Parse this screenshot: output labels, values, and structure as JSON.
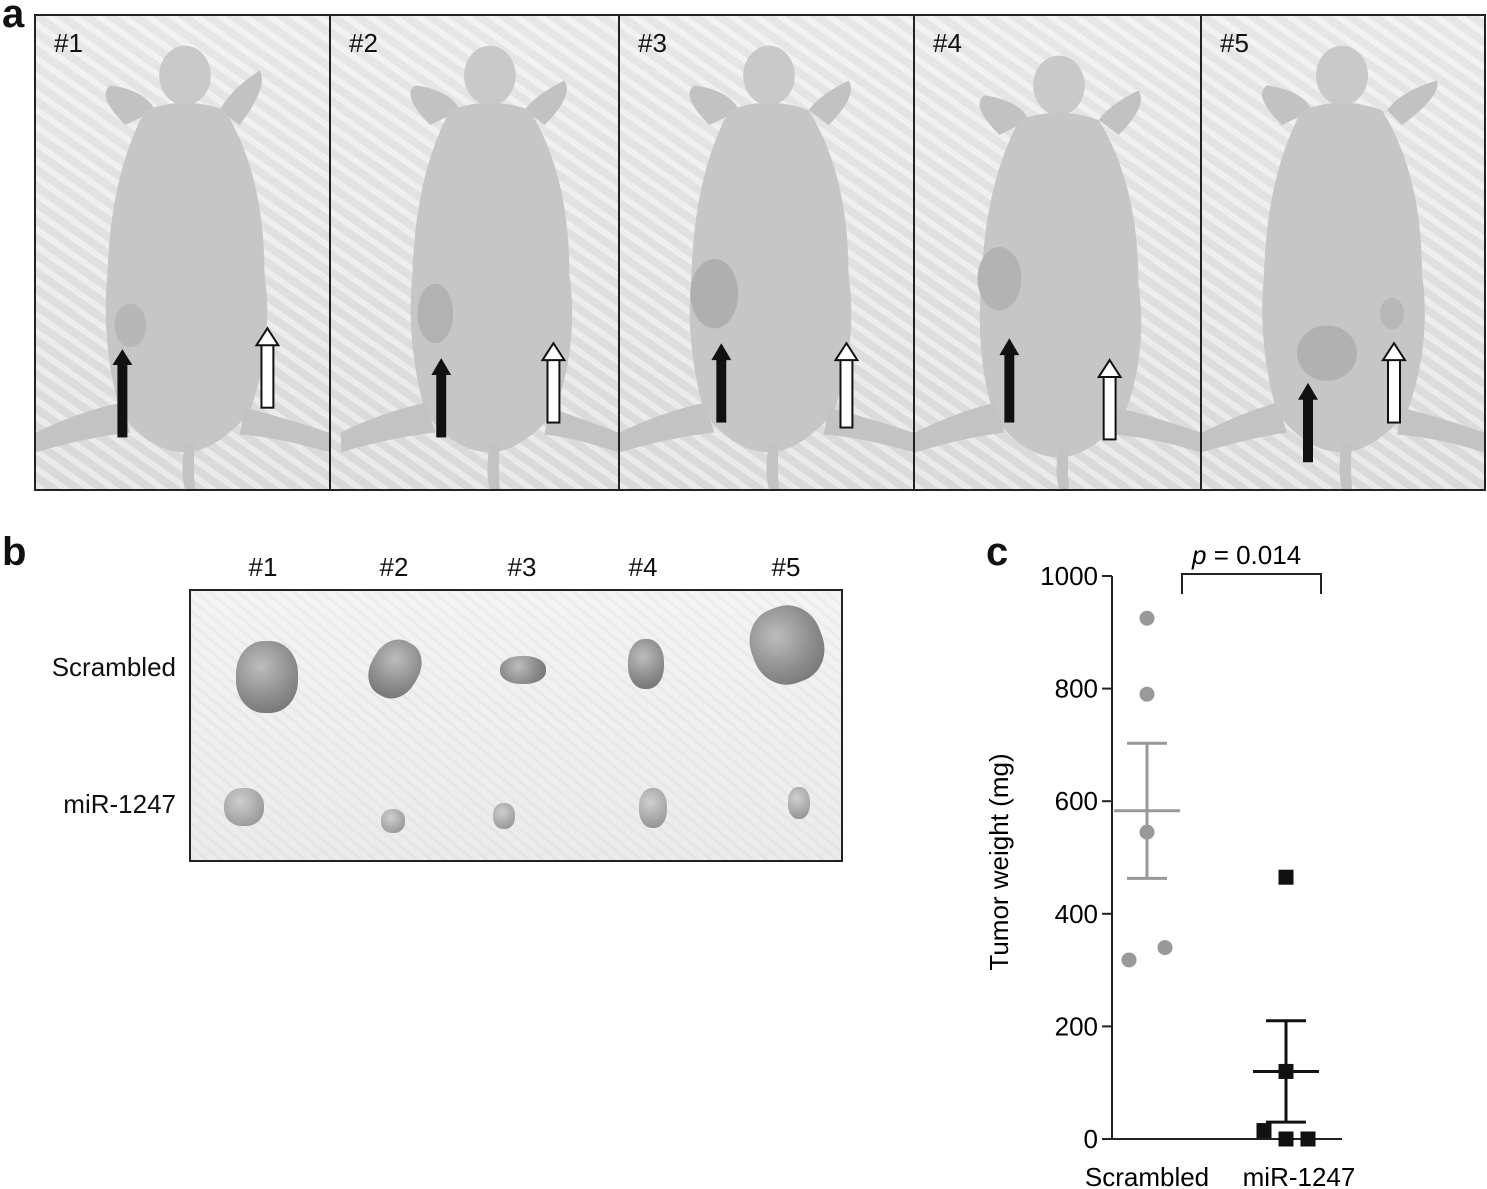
{
  "panels": {
    "a": "a",
    "b": "b",
    "c": "c"
  },
  "panel_a": {
    "mice": [
      {
        "label": "#1"
      },
      {
        "label": "#2"
      },
      {
        "label": "#3"
      },
      {
        "label": "#4"
      },
      {
        "label": "#5"
      }
    ]
  },
  "panel_b": {
    "columns": [
      "#1",
      "#2",
      "#3",
      "#4",
      "#5"
    ],
    "rows": [
      "Scrambled",
      "miR-1247"
    ]
  },
  "chart_data": {
    "type": "scatter",
    "title": "",
    "xlabel": "",
    "ylabel": "Tumor weight (mg)",
    "ylim": [
      0,
      1000
    ],
    "yticks": [
      0,
      200,
      400,
      600,
      800,
      1000
    ],
    "categories": [
      "Scrambled",
      "miR-1247"
    ],
    "series": [
      {
        "points": [
          925,
          790,
          545,
          340,
          318
        ],
        "mean": 583,
        "sem_upper": 703,
        "sem_lower": 463,
        "color": "#999999"
      },
      {
        "points": [
          465,
          120,
          15,
          0,
          0
        ],
        "mean": 120,
        "sem_upper": 210,
        "sem_lower": 30,
        "color": "#111111"
      }
    ],
    "annotation": {
      "prefix": "p",
      "text": " = 0.014"
    },
    "grid": false,
    "legend": "none"
  }
}
